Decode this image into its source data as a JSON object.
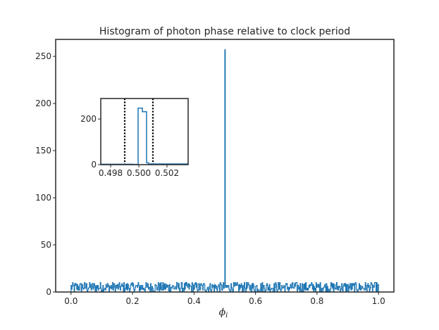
{
  "chart_data": [
    {
      "type": "histogram",
      "title": "Histogram of photon phase relative to clock period",
      "xlabel": "ϕ",
      "xlabel_subscript": "i",
      "ylabel": "",
      "xlim": [
        -0.05,
        1.05
      ],
      "ylim": [
        0,
        268
      ],
      "xticks": [
        0.0,
        0.2,
        0.4,
        0.6,
        0.8,
        1.0
      ],
      "xtick_labels": [
        "0.0",
        "0.2",
        "0.4",
        "0.6",
        "0.8",
        "1.0"
      ],
      "yticks": [
        0,
        50,
        100,
        150,
        200,
        250
      ],
      "ytick_labels": [
        "0",
        "50",
        "100",
        "150",
        "200",
        "250"
      ],
      "grid": false,
      "line_color": "#1f77b4",
      "baseline_range": [
        0,
        10
      ],
      "peak": {
        "x": 0.5,
        "y": 257
      }
    },
    {
      "type": "histogram",
      "role": "inset",
      "title": "",
      "xlim": [
        0.4973,
        0.5035
      ],
      "ylim": [
        0,
        290
      ],
      "xticks": [
        0.498,
        0.5,
        0.502
      ],
      "xtick_labels": [
        "0.498",
        "0.500",
        "0.502"
      ],
      "yticks": [
        0,
        200
      ],
      "ytick_labels": [
        "0",
        "200"
      ],
      "line_color": "#1f77b4",
      "vlines": [
        {
          "x": 0.499,
          "style": "dotted",
          "color": "#000000"
        },
        {
          "x": 0.501,
          "style": "dotted",
          "color": "#000000"
        }
      ],
      "step_x": [
        0.4973,
        0.4996,
        0.4996,
        0.49995,
        0.49995,
        0.50025,
        0.50025,
        0.50055,
        0.50055,
        0.5007,
        0.5007,
        0.5035
      ],
      "step_y": [
        2,
        2,
        1,
        1,
        248,
        248,
        232,
        232,
        8,
        8,
        3,
        3
      ]
    }
  ]
}
